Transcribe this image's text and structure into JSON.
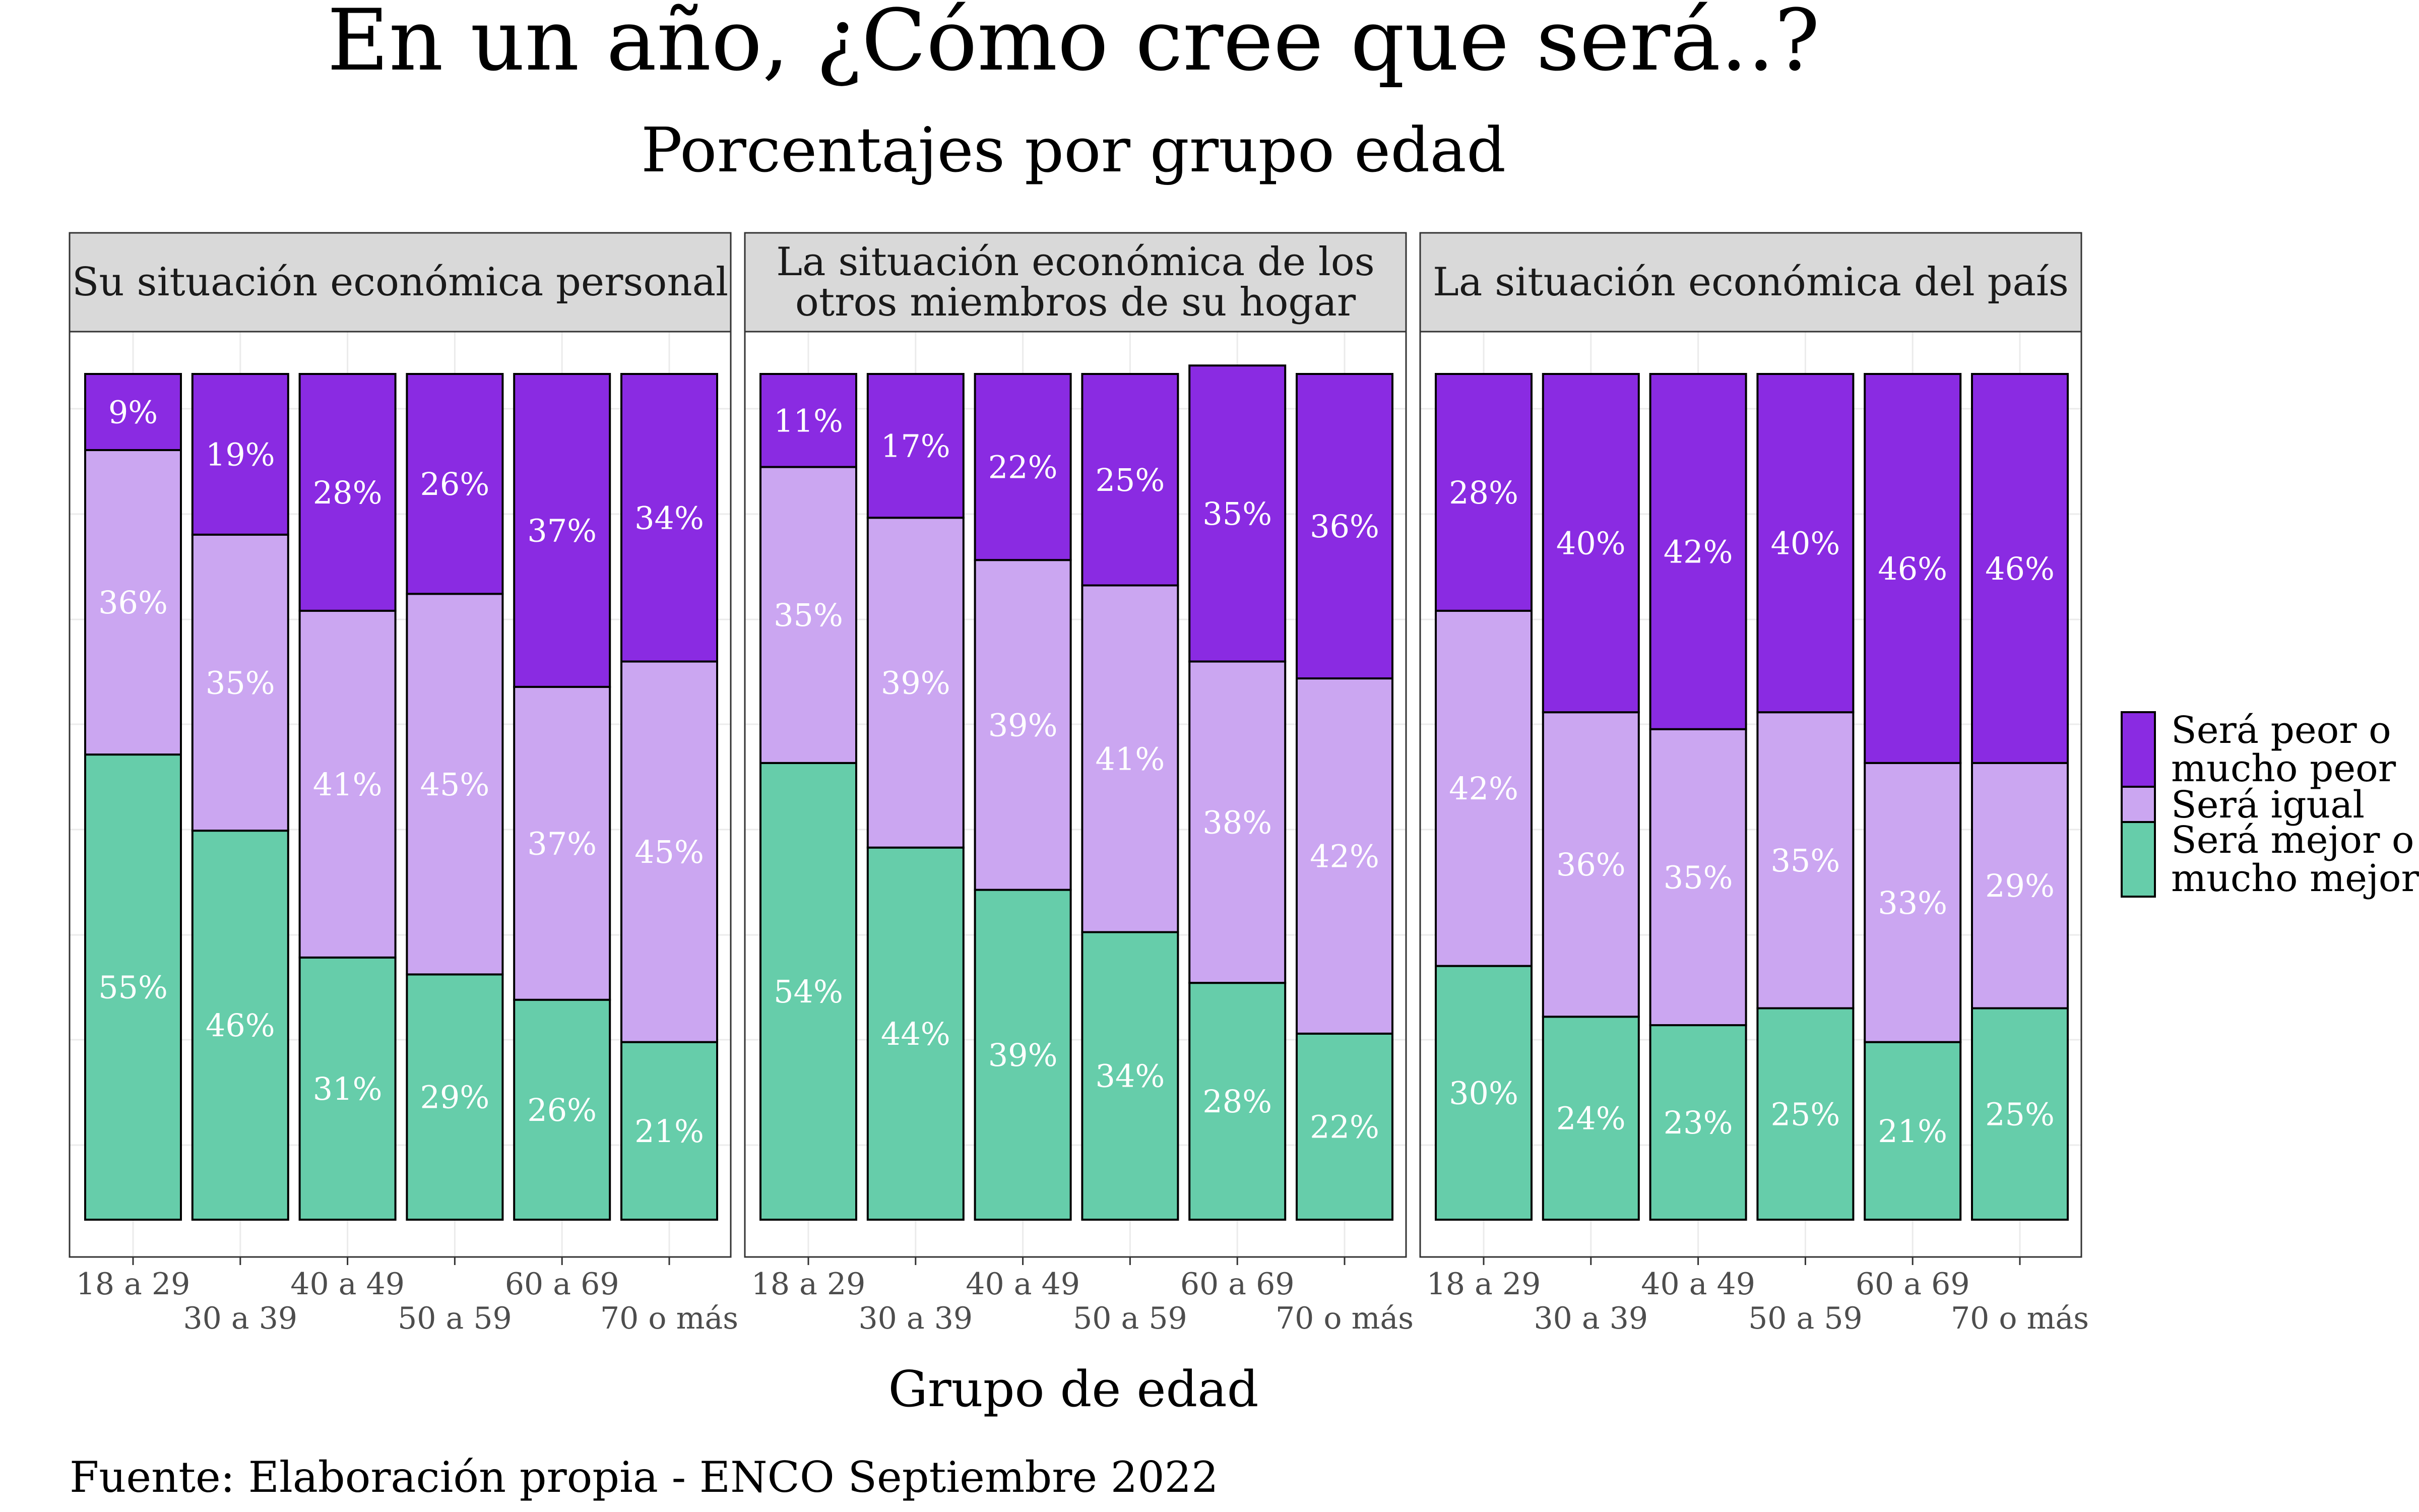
{
  "title": "En un año, ¿Cómo cree que será..?",
  "subtitle": "Porcentajes por grupo edad",
  "caption": "Fuente: Elaboración propia - ENCO Septiembre 2022",
  "colors": {
    "peor": "#8A2BE2",
    "igual": "#CBA6F1",
    "mejor": "#66CDAA",
    "strip_bg": "#d9d9d9",
    "grid": "#ebebeb"
  },
  "chart_data": {
    "type": "bar",
    "stacked": true,
    "percent_labels": true,
    "xlabel": "Grupo de edad",
    "ylabel": "",
    "ylim": [
      0,
      100
    ],
    "grid": true,
    "legend_position": "right",
    "categories": [
      "18 a 29",
      "30 a 39",
      "40 a 49",
      "50 a 59",
      "60 a 69",
      "70 o más"
    ],
    "legend": [
      {
        "key": "peor",
        "label_line1": "Será peor o",
        "label_line2": "mucho peor"
      },
      {
        "key": "igual",
        "label_line1": "Será igual",
        "label_line2": ""
      },
      {
        "key": "mejor",
        "label_line1": "Será mejor o",
        "label_line2": "mucho mejor"
      }
    ],
    "panels": [
      {
        "title_line1": "Su situación económica personal",
        "title_line2": "",
        "series": [
          {
            "key": "mejor",
            "values": [
              55,
              46,
              31,
              29,
              26,
              21
            ]
          },
          {
            "key": "igual",
            "values": [
              36,
              35,
              41,
              45,
              37,
              45
            ]
          },
          {
            "key": "peor",
            "values": [
              9,
              19,
              28,
              26,
              37,
              34
            ]
          }
        ]
      },
      {
        "title_line1": "La situación económica de los",
        "title_line2": "otros miembros de su hogar",
        "series": [
          {
            "key": "mejor",
            "values": [
              54,
              44,
              39,
              34,
              28,
              22
            ]
          },
          {
            "key": "igual",
            "values": [
              35,
              39,
              39,
              41,
              38,
              42
            ]
          },
          {
            "key": "peor",
            "values": [
              11,
              17,
              22,
              25,
              35,
              36
            ]
          }
        ]
      },
      {
        "title_line1": "La situación económica del país",
        "title_line2": "",
        "series": [
          {
            "key": "mejor",
            "values": [
              30,
              24,
              23,
              25,
              21,
              25
            ]
          },
          {
            "key": "igual",
            "values": [
              42,
              36,
              35,
              35,
              33,
              29
            ]
          },
          {
            "key": "peor",
            "values": [
              28,
              40,
              42,
              40,
              46,
              46
            ]
          }
        ]
      }
    ]
  }
}
